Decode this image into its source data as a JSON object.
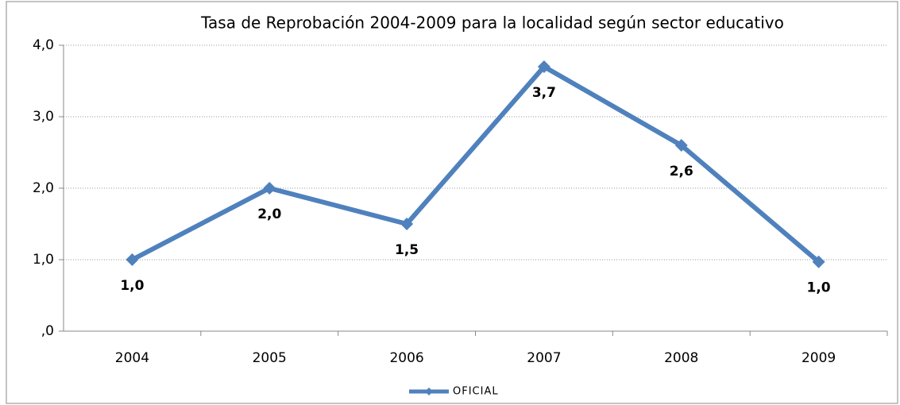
{
  "chart_data": {
    "type": "line",
    "title": "Tasa de Reprobación 2004-2009 para la localidad según  sector educativo",
    "categories": [
      "2004",
      "2005",
      "2006",
      "2007",
      "2008",
      "2009"
    ],
    "series": [
      {
        "name": "OFICIAL",
        "color": "#4f81bd",
        "values": [
          1.0,
          2.0,
          1.5,
          3.7,
          2.6,
          0.97
        ],
        "value_labels": [
          "1,0",
          "2,0",
          "1,5",
          "3,7",
          "2,6",
          "1,0"
        ]
      }
    ],
    "ylim": [
      0,
      4
    ],
    "yticks": [
      {
        "value": 0,
        "label": ",0"
      },
      {
        "value": 1,
        "label": "1,0"
      },
      {
        "value": 2,
        "label": "2,0"
      },
      {
        "value": 3,
        "label": "3,0"
      },
      {
        "value": 4,
        "label": "4,0"
      }
    ],
    "grid": true,
    "legend": "bottom"
  }
}
